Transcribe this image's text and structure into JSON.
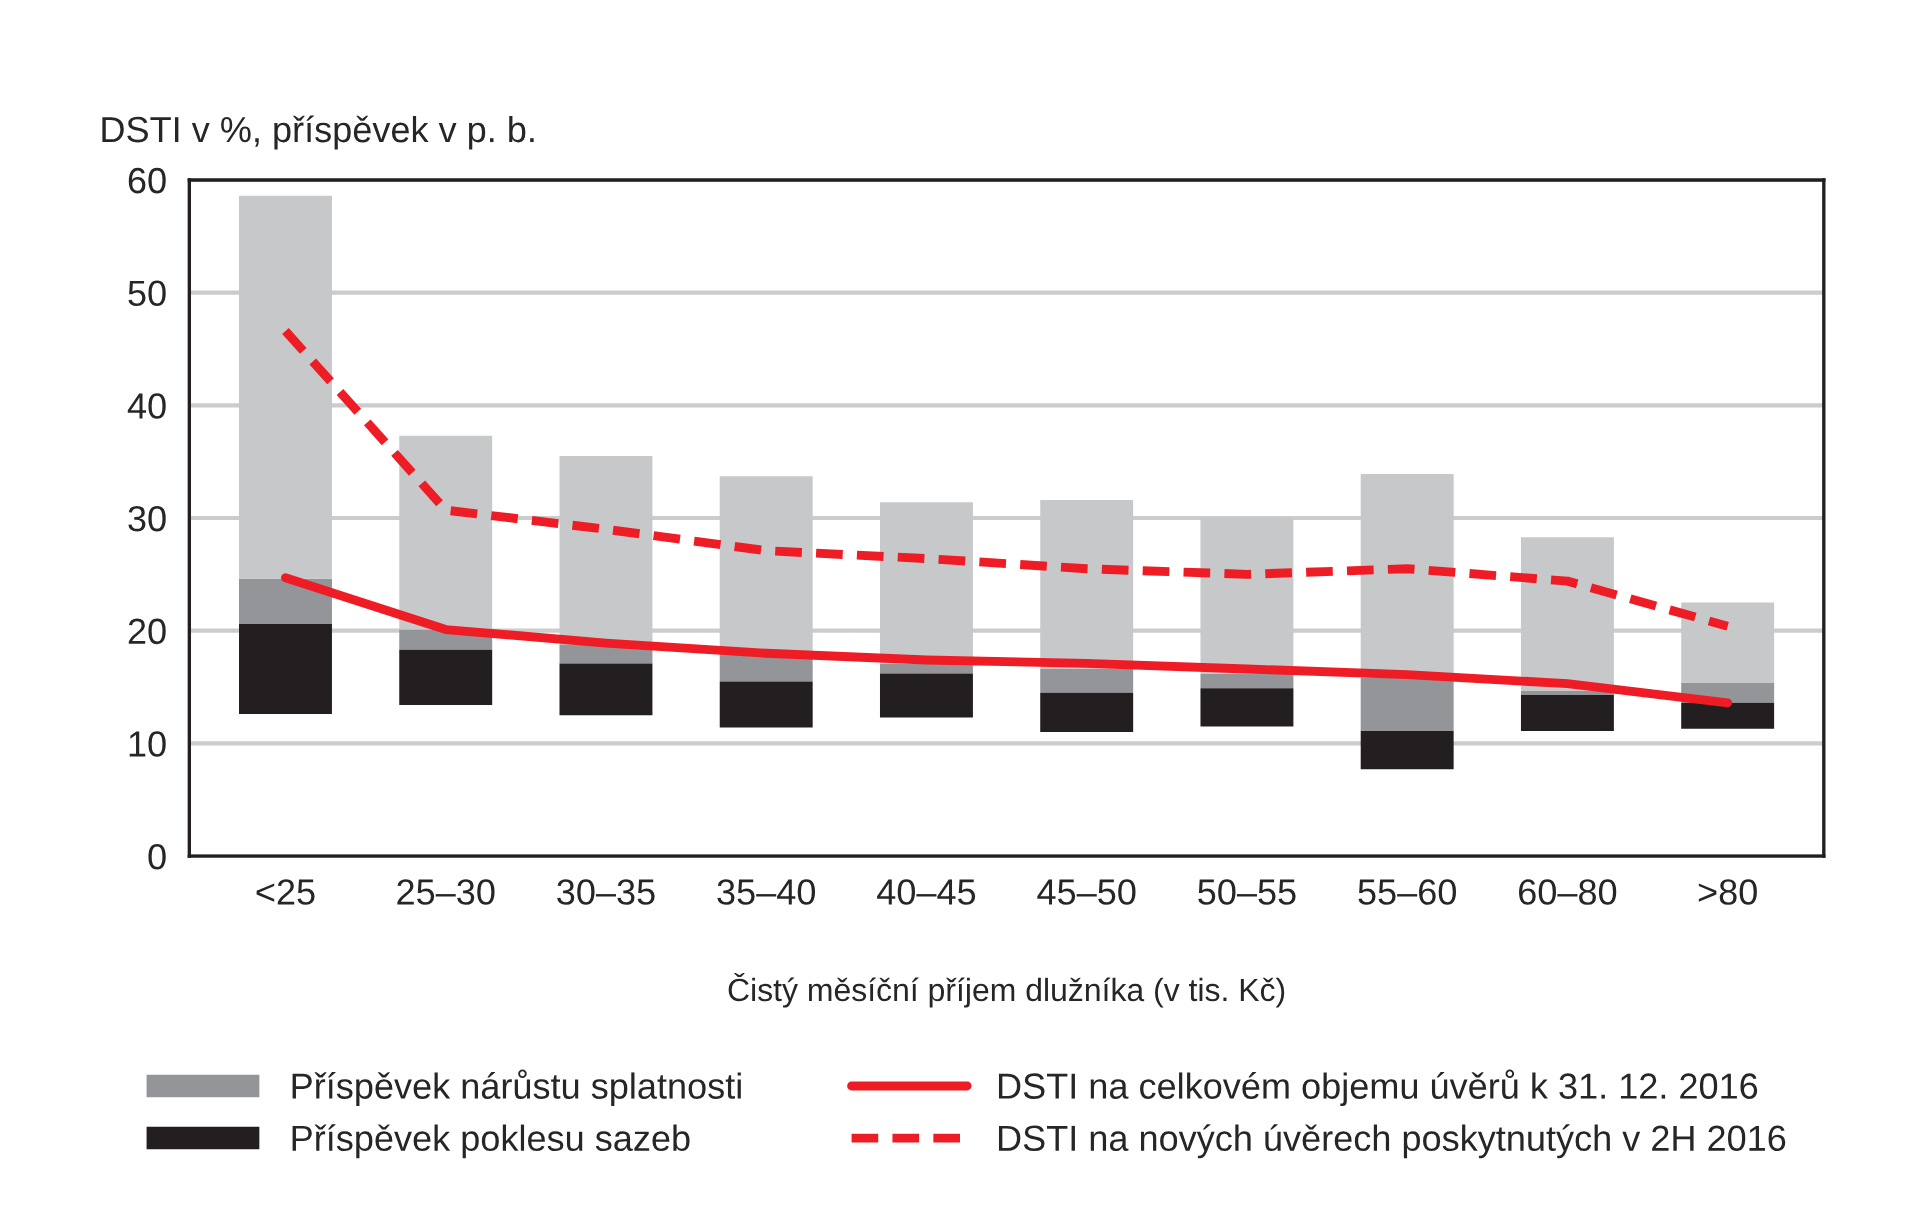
{
  "chart_data": {
    "type": "bar",
    "ylabel": "DSTI v %, příspěvek v p. b.",
    "xlabel": "Čistý měsíční příjem dlužníka (v tis. Kč)",
    "categories": [
      "<25",
      "25–30",
      "30–35",
      "35–40",
      "40–45",
      "45–50",
      "50–55",
      "55–60",
      "60–80",
      ">80"
    ],
    "series": [
      {
        "name": "Příspěvek nárůstu splatnosti",
        "color": "#939598",
        "base": [
          20.6,
          18.3,
          17.1,
          15.5,
          16.2,
          14.5,
          14.9,
          11.1,
          14.3,
          13.6
        ],
        "values": [
          4.0,
          1.8,
          1.7,
          2.4,
          0.9,
          2.1,
          1.3,
          4.7,
          0.4,
          1.8
        ]
      },
      {
        "name": "Příspěvek poklesu sazeb",
        "color": "#231f20",
        "base": [
          12.6,
          13.4,
          12.5,
          11.4,
          12.3,
          11.0,
          11.5,
          7.7,
          11.1,
          11.3
        ],
        "values": [
          8.0,
          4.9,
          4.6,
          4.1,
          3.9,
          3.5,
          3.4,
          3.4,
          3.2,
          2.3
        ]
      },
      {
        "color": "#c7c8ca",
        "base": [
          24.6,
          20.1,
          18.8,
          17.9,
          17.1,
          16.6,
          16.2,
          15.8,
          14.7,
          15.4
        ],
        "values": [
          34.0,
          17.2,
          16.7,
          15.8,
          14.3,
          15.0,
          13.8,
          18.1,
          13.6,
          7.1
        ]
      },
      {
        "type": "line",
        "name": "DSTI na celkovém objemu úvěrů k 31. 12. 2016",
        "color": "#ee1c25",
        "line_style": "solid",
        "values": [
          24.7,
          20.1,
          18.9,
          18.0,
          17.4,
          17.1,
          16.6,
          16.1,
          15.3,
          13.6
        ]
      },
      {
        "type": "line",
        "name": "DSTI na nových úvěrech poskytnutých v 2H 2016",
        "color": "#ee1c25",
        "line_style": "dashed",
        "values": [
          46.6,
          30.7,
          29.0,
          27.1,
          26.4,
          25.5,
          25.0,
          25.5,
          24.4,
          20.4
        ]
      }
    ],
    "ylim": [
      0,
      60
    ],
    "yticks": [
      0,
      10,
      20,
      30,
      40,
      50,
      60
    ],
    "grid": "y",
    "legend": "bottom"
  }
}
